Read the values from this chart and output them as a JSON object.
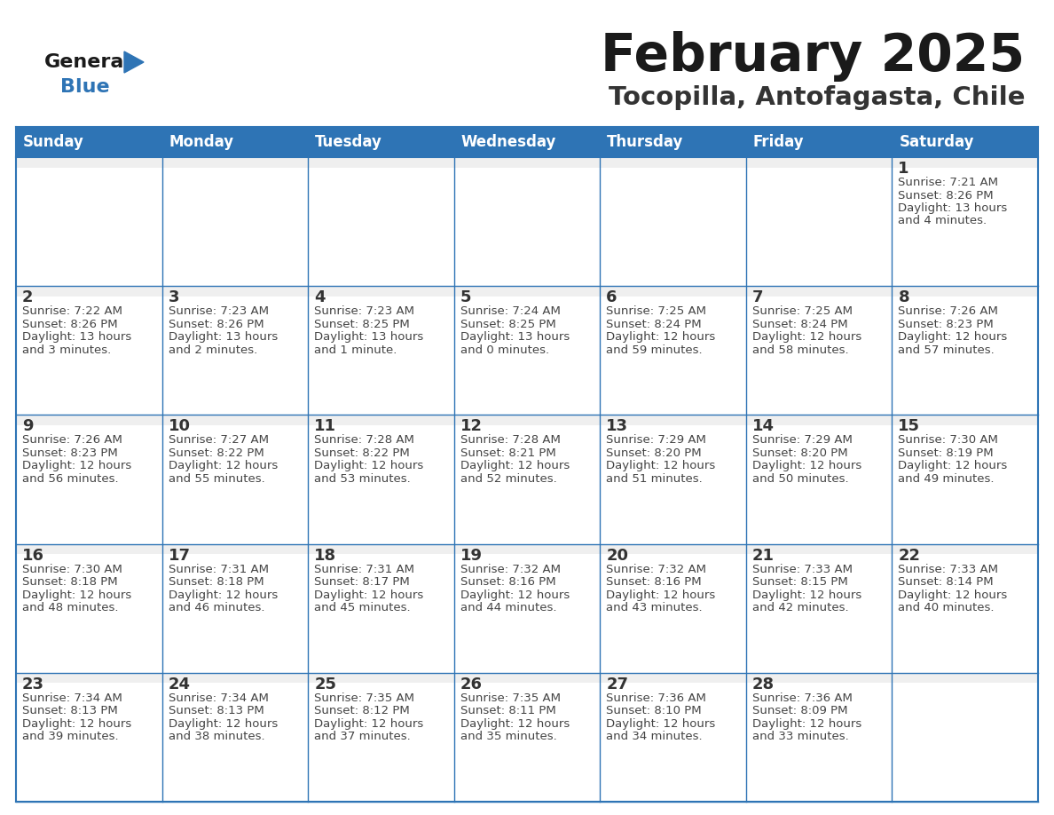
{
  "title": "February 2025",
  "subtitle": "Tocopilla, Antofagasta, Chile",
  "days_of_week": [
    "Sunday",
    "Monday",
    "Tuesday",
    "Wednesday",
    "Thursday",
    "Friday",
    "Saturday"
  ],
  "header_bg": "#2E74B5",
  "header_text_color": "#FFFFFF",
  "cell_bg": "#FFFFFF",
  "cell_bg_gray": "#EFEFEF",
  "cell_text_color": "#444444",
  "day_number_color": "#333333",
  "border_color": "#2E74B5",
  "title_color": "#1A1A1A",
  "subtitle_color": "#333333",
  "logo_general_color": "#1A1A1A",
  "logo_blue_color": "#2E74B5",
  "calendar": [
    [
      {
        "day": null,
        "info": ""
      },
      {
        "day": null,
        "info": ""
      },
      {
        "day": null,
        "info": ""
      },
      {
        "day": null,
        "info": ""
      },
      {
        "day": null,
        "info": ""
      },
      {
        "day": null,
        "info": ""
      },
      {
        "day": 1,
        "info": "Sunrise: 7:21 AM\nSunset: 8:26 PM\nDaylight: 13 hours\nand 4 minutes."
      }
    ],
    [
      {
        "day": 2,
        "info": "Sunrise: 7:22 AM\nSunset: 8:26 PM\nDaylight: 13 hours\nand 3 minutes."
      },
      {
        "day": 3,
        "info": "Sunrise: 7:23 AM\nSunset: 8:26 PM\nDaylight: 13 hours\nand 2 minutes."
      },
      {
        "day": 4,
        "info": "Sunrise: 7:23 AM\nSunset: 8:25 PM\nDaylight: 13 hours\nand 1 minute."
      },
      {
        "day": 5,
        "info": "Sunrise: 7:24 AM\nSunset: 8:25 PM\nDaylight: 13 hours\nand 0 minutes."
      },
      {
        "day": 6,
        "info": "Sunrise: 7:25 AM\nSunset: 8:24 PM\nDaylight: 12 hours\nand 59 minutes."
      },
      {
        "day": 7,
        "info": "Sunrise: 7:25 AM\nSunset: 8:24 PM\nDaylight: 12 hours\nand 58 minutes."
      },
      {
        "day": 8,
        "info": "Sunrise: 7:26 AM\nSunset: 8:23 PM\nDaylight: 12 hours\nand 57 minutes."
      }
    ],
    [
      {
        "day": 9,
        "info": "Sunrise: 7:26 AM\nSunset: 8:23 PM\nDaylight: 12 hours\nand 56 minutes."
      },
      {
        "day": 10,
        "info": "Sunrise: 7:27 AM\nSunset: 8:22 PM\nDaylight: 12 hours\nand 55 minutes."
      },
      {
        "day": 11,
        "info": "Sunrise: 7:28 AM\nSunset: 8:22 PM\nDaylight: 12 hours\nand 53 minutes."
      },
      {
        "day": 12,
        "info": "Sunrise: 7:28 AM\nSunset: 8:21 PM\nDaylight: 12 hours\nand 52 minutes."
      },
      {
        "day": 13,
        "info": "Sunrise: 7:29 AM\nSunset: 8:20 PM\nDaylight: 12 hours\nand 51 minutes."
      },
      {
        "day": 14,
        "info": "Sunrise: 7:29 AM\nSunset: 8:20 PM\nDaylight: 12 hours\nand 50 minutes."
      },
      {
        "day": 15,
        "info": "Sunrise: 7:30 AM\nSunset: 8:19 PM\nDaylight: 12 hours\nand 49 minutes."
      }
    ],
    [
      {
        "day": 16,
        "info": "Sunrise: 7:30 AM\nSunset: 8:18 PM\nDaylight: 12 hours\nand 48 minutes."
      },
      {
        "day": 17,
        "info": "Sunrise: 7:31 AM\nSunset: 8:18 PM\nDaylight: 12 hours\nand 46 minutes."
      },
      {
        "day": 18,
        "info": "Sunrise: 7:31 AM\nSunset: 8:17 PM\nDaylight: 12 hours\nand 45 minutes."
      },
      {
        "day": 19,
        "info": "Sunrise: 7:32 AM\nSunset: 8:16 PM\nDaylight: 12 hours\nand 44 minutes."
      },
      {
        "day": 20,
        "info": "Sunrise: 7:32 AM\nSunset: 8:16 PM\nDaylight: 12 hours\nand 43 minutes."
      },
      {
        "day": 21,
        "info": "Sunrise: 7:33 AM\nSunset: 8:15 PM\nDaylight: 12 hours\nand 42 minutes."
      },
      {
        "day": 22,
        "info": "Sunrise: 7:33 AM\nSunset: 8:14 PM\nDaylight: 12 hours\nand 40 minutes."
      }
    ],
    [
      {
        "day": 23,
        "info": "Sunrise: 7:34 AM\nSunset: 8:13 PM\nDaylight: 12 hours\nand 39 minutes."
      },
      {
        "day": 24,
        "info": "Sunrise: 7:34 AM\nSunset: 8:13 PM\nDaylight: 12 hours\nand 38 minutes."
      },
      {
        "day": 25,
        "info": "Sunrise: 7:35 AM\nSunset: 8:12 PM\nDaylight: 12 hours\nand 37 minutes."
      },
      {
        "day": 26,
        "info": "Sunrise: 7:35 AM\nSunset: 8:11 PM\nDaylight: 12 hours\nand 35 minutes."
      },
      {
        "day": 27,
        "info": "Sunrise: 7:36 AM\nSunset: 8:10 PM\nDaylight: 12 hours\nand 34 minutes."
      },
      {
        "day": 28,
        "info": "Sunrise: 7:36 AM\nSunset: 8:09 PM\nDaylight: 12 hours\nand 33 minutes."
      },
      {
        "day": null,
        "info": ""
      }
    ]
  ]
}
